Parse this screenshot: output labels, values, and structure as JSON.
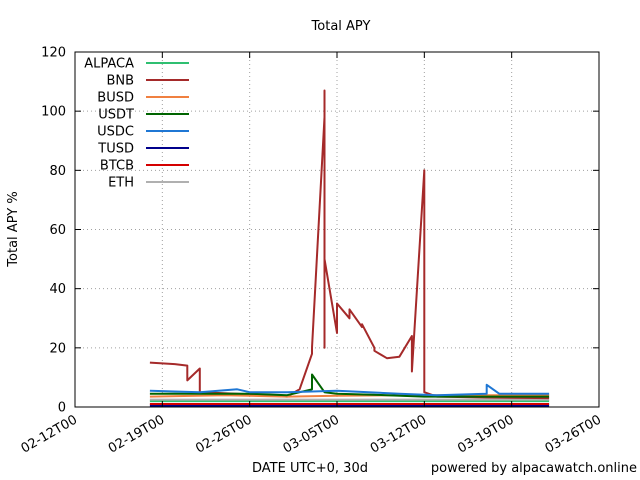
{
  "chart_data": {
    "type": "line",
    "title": "Total APY",
    "xlabel": "DATE UTC+0, 30d",
    "ylabel": "Total APY %",
    "credit": "powered by alpacawatch.online",
    "ylim": [
      0,
      120
    ],
    "yticks": [
      "0",
      "20",
      "40",
      "60",
      "80",
      "100",
      "120"
    ],
    "xlim": [
      "2021-02-12",
      "2021-03-26"
    ],
    "xticks": [
      {
        "date": "2021-02-12",
        "label": "02-12T00"
      },
      {
        "date": "2021-02-19",
        "label": "02-19T00"
      },
      {
        "date": "2021-02-26",
        "label": "02-26T00"
      },
      {
        "date": "2021-03-05",
        "label": "03-05T00"
      },
      {
        "date": "2021-03-12",
        "label": "03-12T00"
      },
      {
        "date": "2021-03-19",
        "label": "03-19T00"
      },
      {
        "date": "2021-03-26",
        "label": "03-26T00"
      }
    ],
    "grid": true,
    "legend": "top-left",
    "series": [
      {
        "name": "ALPACA",
        "color": "#2fbf71",
        "x": [
          "2021-02-18",
          "2021-02-24",
          "2021-03-01",
          "2021-03-08",
          "2021-03-15",
          "2021-03-22"
        ],
        "y": [
          2.0,
          2.0,
          2.0,
          2.0,
          2.0,
          2.0
        ]
      },
      {
        "name": "BNB",
        "color": "#a52a2a",
        "x": [
          "2021-02-18",
          "2021-02-20",
          "2021-02-21",
          "2021-02-21",
          "2021-02-22",
          "2021-02-22",
          "2021-02-25",
          "2021-03-01",
          "2021-03-02",
          "2021-03-03",
          "2021-03-03",
          "2021-03-04",
          "2021-03-04",
          "2021-03-04",
          "2021-03-04",
          "2021-03-05",
          "2021-03-05",
          "2021-03-06",
          "2021-03-06",
          "2021-03-07",
          "2021-03-07",
          "2021-03-08",
          "2021-03-08",
          "2021-03-09",
          "2021-03-10",
          "2021-03-11",
          "2021-03-11",
          "2021-03-11",
          "2021-03-12",
          "2021-03-12",
          "2021-03-12",
          "2021-03-13",
          "2021-03-17",
          "2021-03-22"
        ],
        "y": [
          15,
          14.5,
          14,
          9,
          13,
          5,
          4.5,
          3.5,
          6,
          18,
          20,
          98,
          107,
          20,
          50,
          25,
          35,
          30,
          33,
          27,
          28,
          20,
          19,
          16.5,
          17,
          24,
          15,
          12,
          80,
          7,
          5,
          3.5,
          3.2,
          3.0
        ]
      },
      {
        "name": "BUSD",
        "color": "#f08040",
        "x": [
          "2021-02-18",
          "2021-02-24",
          "2021-03-01",
          "2021-03-05",
          "2021-03-10",
          "2021-03-15",
          "2021-03-22"
        ],
        "y": [
          3.5,
          4.0,
          3.5,
          3.8,
          4.0,
          4.0,
          4.0
        ]
      },
      {
        "name": "USDT",
        "color": "#006400",
        "x": [
          "2021-02-18",
          "2021-02-22",
          "2021-02-26",
          "2021-03-01",
          "2021-03-03",
          "2021-03-03",
          "2021-03-04",
          "2021-03-05",
          "2021-03-09",
          "2021-03-12",
          "2021-03-16",
          "2021-03-22"
        ],
        "y": [
          4.5,
          4.5,
          4.5,
          4.0,
          6.0,
          11.0,
          5.0,
          4.5,
          4.0,
          3.5,
          3.5,
          3.5
        ]
      },
      {
        "name": "USDC",
        "color": "#1f77d4",
        "x": [
          "2021-02-18",
          "2021-02-22",
          "2021-02-25",
          "2021-02-26",
          "2021-03-01",
          "2021-03-05",
          "2021-03-10",
          "2021-03-13",
          "2021-03-17",
          "2021-03-17",
          "2021-03-18",
          "2021-03-22"
        ],
        "y": [
          5.5,
          5.0,
          6.0,
          5.0,
          5.0,
          5.5,
          4.5,
          4.0,
          4.5,
          7.5,
          4.5,
          4.5
        ]
      },
      {
        "name": "TUSD",
        "color": "#00008b",
        "x": [
          "2021-02-18",
          "2021-02-24",
          "2021-03-01",
          "2021-03-08",
          "2021-03-15",
          "2021-03-22"
        ],
        "y": [
          0.5,
          0.5,
          0.5,
          0.5,
          0.5,
          0.5
        ]
      },
      {
        "name": "BTCB",
        "color": "#d40000",
        "x": [
          "2021-02-18",
          "2021-02-24",
          "2021-03-01",
          "2021-03-08",
          "2021-03-15",
          "2021-03-22"
        ],
        "y": [
          1.0,
          1.0,
          1.0,
          1.0,
          1.0,
          1.0
        ]
      },
      {
        "name": "ETH",
        "color": "#b0b0b0",
        "x": [
          "2021-02-18",
          "2021-02-24",
          "2021-03-01",
          "2021-03-08",
          "2021-03-15",
          "2021-03-22"
        ],
        "y": [
          2.5,
          2.5,
          2.5,
          2.5,
          2.5,
          2.5
        ]
      }
    ]
  }
}
